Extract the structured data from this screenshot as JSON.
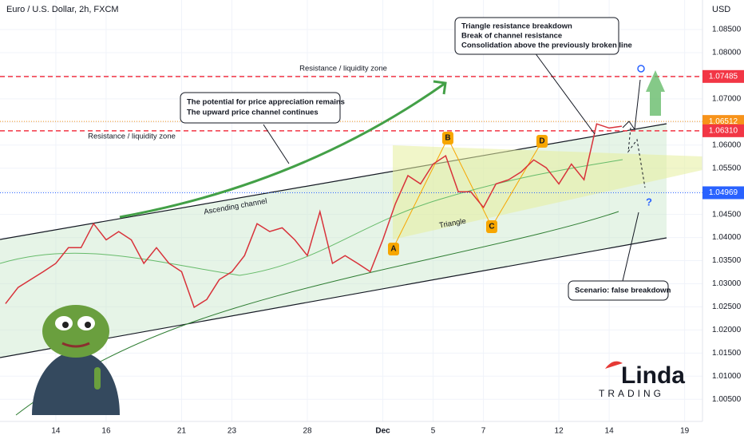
{
  "header": {
    "title": "Euro / U.S. Dollar, 2h, FXCM"
  },
  "chart_data": {
    "type": "line",
    "color": "#d8323a",
    "x": [
      -2,
      -1.5,
      -1,
      -0.5,
      0,
      0.5,
      1,
      1.5,
      2,
      2.5,
      3,
      3.5,
      4,
      4.5,
      5,
      5.5,
      6,
      6.5,
      7,
      7.5,
      8,
      8.5,
      9,
      9.5,
      10,
      10.5,
      11,
      11.5,
      12,
      12.5,
      13,
      13.5,
      14,
      14.5,
      15,
      15.5,
      16,
      16.5,
      17,
      17.5,
      18,
      18.5,
      19,
      19.5,
      20,
      20.5,
      21,
      21.5,
      22,
      22.5
    ],
    "values": [
      1.0257,
      1.0292,
      1.0309,
      1.0326,
      1.0344,
      1.0378,
      1.0378,
      1.043,
      1.0395,
      1.0413,
      1.0395,
      1.0344,
      1.0378,
      1.0344,
      1.0326,
      1.0249,
      1.0266,
      1.0309,
      1.0326,
      1.0361,
      1.043,
      1.0413,
      1.0421,
      1.0395,
      1.0361,
      1.0456,
      1.0344,
      1.0361,
      1.0344,
      1.0326,
      1.0395,
      1.0473,
      1.0534,
      1.0516,
      1.0559,
      1.0577,
      1.0499,
      1.0499,
      1.0465,
      1.0516,
      1.0525,
      1.0542,
      1.0568,
      1.0551,
      1.0516,
      1.0559,
      1.0525,
      1.0646,
      1.0637,
      1.0641
    ],
    "xlim": [
      -2.22,
      25.71
    ],
    "ylim": [
      1.0002,
      1.0914
    ],
    "xticks": [
      {
        "value": 0,
        "label": "14"
      },
      {
        "value": 2,
        "label": "16"
      },
      {
        "value": 5,
        "label": "21"
      },
      {
        "value": 7,
        "label": "23"
      },
      {
        "value": 10,
        "label": "28"
      },
      {
        "value": 13,
        "label": "Dec"
      },
      {
        "value": 15,
        "label": "5"
      },
      {
        "value": 17,
        "label": "7"
      },
      {
        "value": 20,
        "label": "12"
      },
      {
        "value": 22,
        "label": "14"
      },
      {
        "value": 25,
        "label": "19"
      }
    ],
    "yticks": [
      {
        "value": 1.005,
        "label": "1.00500"
      },
      {
        "value": 1.01,
        "label": "1.01000"
      },
      {
        "value": 1.015,
        "label": "1.01500"
      },
      {
        "value": 1.02,
        "label": "1.02000"
      },
      {
        "value": 1.025,
        "label": "1.02500"
      },
      {
        "value": 1.03,
        "label": "1.03000"
      },
      {
        "value": 1.035,
        "label": "1.03500"
      },
      {
        "value": 1.04,
        "label": "1.04000"
      },
      {
        "value": 1.045,
        "label": "1.04500"
      },
      {
        "value": 1.05,
        "label": "1.05000"
      },
      {
        "value": 1.055,
        "label": "1.05500"
      },
      {
        "value": 1.06,
        "label": "1.06000"
      },
      {
        "value": 1.065,
        "label": "1.06500"
      },
      {
        "value": 1.07,
        "label": "1.07000"
      },
      {
        "value": 1.075,
        "label": "1.07500"
      },
      {
        "value": 1.08,
        "label": "1.08000"
      },
      {
        "value": 1.085,
        "label": "1.08500"
      }
    ],
    "y_axis_label": "USD",
    "price_levels": [
      {
        "value": 1.07485,
        "color": "#f23645",
        "dash": true
      },
      {
        "value": 1.06512,
        "color": "#f7931a",
        "dash": false
      },
      {
        "value": 1.0631,
        "label": "1.06310",
        "color": "#f23645",
        "dash": true
      },
      {
        "value": 1.04969,
        "color": "#2962ff",
        "dash": false
      }
    ],
    "annotations": [
      "Resistance / liquidity zone",
      "Resistance / liquidity zone",
      "Ascending channel",
      "Triangle"
    ],
    "callouts": [
      [
        "The potential for price appreciation remains",
        "The upward price channel continues"
      ],
      [
        "Triangle resistance breakdown",
        "Break of channel resistance",
        "Consolidation above the previously broken line"
      ],
      [
        "Scenario: false breakdown"
      ]
    ],
    "pattern_points": [
      "A",
      "B",
      "C",
      "D"
    ],
    "scenario_mark": "?"
  },
  "logo": {
    "name": "Linda",
    "sub": "TRADING"
  }
}
